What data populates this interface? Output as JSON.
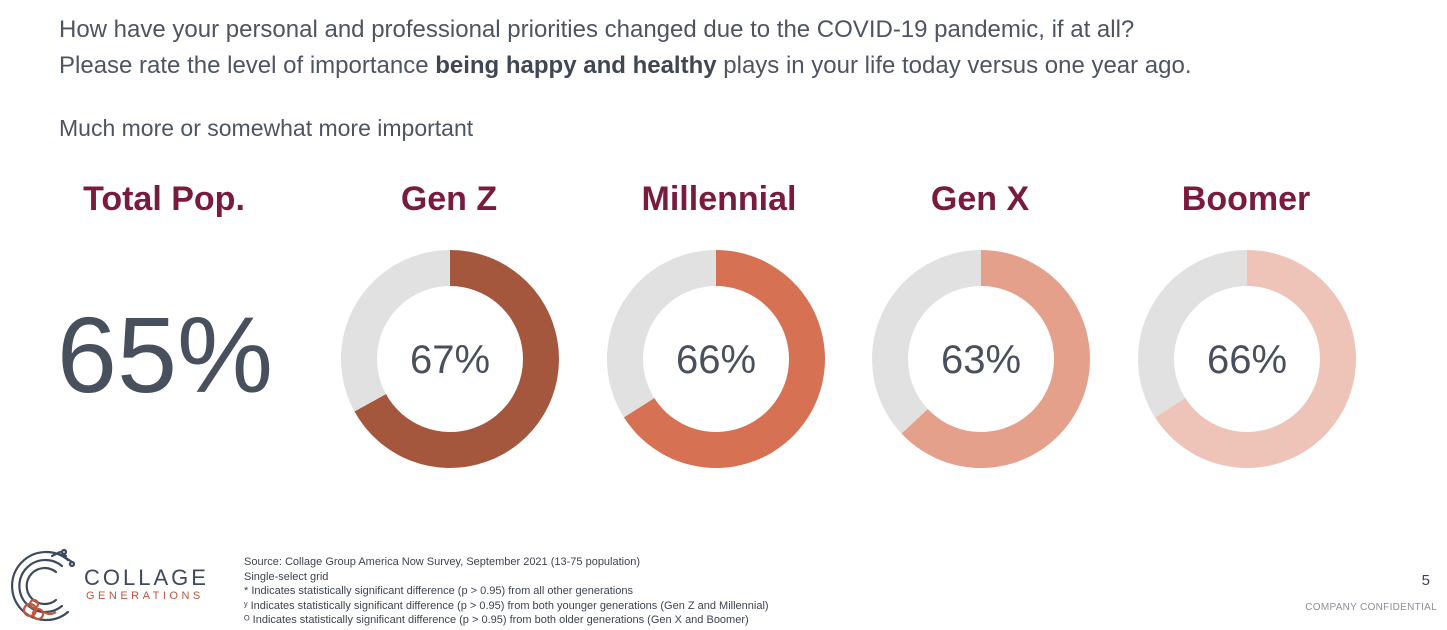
{
  "question": {
    "line1": "How have your personal and professional priorities changed due to the COVID-19 pandemic, if at all?",
    "line2_pre": "Please rate the level of importance ",
    "line2_bold": "being happy and healthy",
    "line2_post": " plays in your life today versus one year ago."
  },
  "subtitle": "Much more or somewhat more important",
  "total": {
    "label": "Total Pop.",
    "value_text": "65%"
  },
  "chart_data": {
    "type": "pie",
    "variant": "donut",
    "categories": [
      "Gen Z",
      "Millennial",
      "Gen X",
      "Boomer"
    ],
    "values": [
      67,
      66,
      63,
      66
    ],
    "value_labels": [
      "67%",
      "66%",
      "63%",
      "66%"
    ],
    "colors": [
      "#a5573e",
      "#d67153",
      "#e5a08c",
      "#efc4b8"
    ],
    "remainder_color": "#e1e1e1",
    "unit": "%"
  },
  "logo": {
    "word": "COLLAGE",
    "sub": "GENERATIONS"
  },
  "footnotes": [
    "Source: Collage Group America Now Survey, September 2021 (13-75 population)",
    "Single-select grid",
    "* Indicates statistically significant difference (p > 0.95) from all other generations",
    "ʸ Indicates statistically significant difference (p > 0.95) from both younger generations (Gen Z and Millennial)",
    "ᴼ Indicates statistically significant difference (p > 0.95) from both older generations (Gen X and Boomer)"
  ],
  "page_number": "5",
  "confidential": "COMPANY CONFIDENTIAL"
}
